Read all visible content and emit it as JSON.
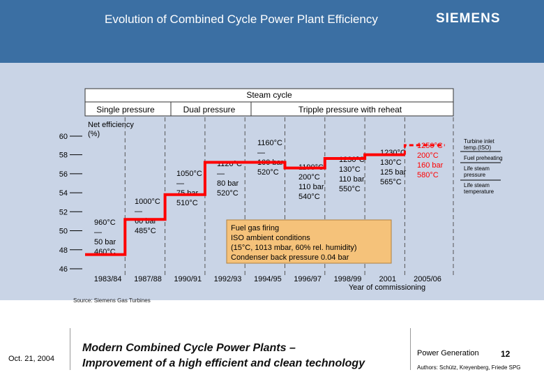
{
  "header": {
    "title": "Evolution of Combined Cycle Power Plant Efficiency",
    "logo": "SIEMENS"
  },
  "colors": {
    "header_bg": "#3b6fa3",
    "panel_bg": "#c9d4e6",
    "step_line": "#ff0000",
    "note_bg": "#f5c27a"
  },
  "chart_data": {
    "type": "line",
    "title": "Steam cycle",
    "ylabel": "Net efficiency (%)",
    "xlabel": "Year of commissioning",
    "ylim": [
      46,
      60
    ],
    "yticks": [
      "46",
      "48",
      "50",
      "52",
      "54",
      "56",
      "58",
      "60"
    ],
    "categories": [
      "1983/84",
      "1987/88",
      "1990/91",
      "1992/93",
      "1994/95",
      "1996/97",
      "1998/99",
      "2001",
      "2005/06"
    ],
    "series": [
      {
        "name": "Net efficiency",
        "step": true,
        "values": [
          47.5,
          51.2,
          53.8,
          57.2,
          57.2,
          56.6,
          57.6,
          58.0,
          59.0
        ]
      }
    ],
    "pressure_groups": [
      {
        "label": "Single pressure"
      },
      {
        "label": "Dual pressure"
      },
      {
        "label": "Tripple pressure with reheat"
      }
    ],
    "annotations": [
      {
        "lines": [
          "960°C",
          "—",
          "50 bar",
          "460°C"
        ]
      },
      {
        "lines": [
          "1000°C",
          "—",
          "60 bar",
          "485°C"
        ]
      },
      {
        "lines": [
          "1050°C",
          "—",
          "75 bar",
          "510°C"
        ]
      },
      {
        "lines": [
          "1120°C",
          "—",
          "80 bar",
          "520°C"
        ]
      },
      {
        "lines": [
          "1160°C",
          "—",
          "100 bar",
          "520°C"
        ]
      },
      {
        "lines": [
          "1190°C",
          "200°C",
          "110 bar",
          "540°C"
        ]
      },
      {
        "lines": [
          "1230°C",
          "130°C",
          "110 bar",
          "550°C"
        ]
      },
      {
        "lines": [
          "1230°C",
          "130°C",
          "125 bar",
          "565°C"
        ]
      },
      {
        "lines": [
          "1250°C",
          "200°C",
          "160 bar",
          "580°C"
        ]
      }
    ],
    "legend": [
      "Turbine inlet temp.(ISO)",
      "Fuel preheating",
      "Life steam pressure",
      "Life steam temperature"
    ],
    "note": [
      "Fuel gas firing",
      "ISO ambient conditions",
      "(15°C, 1013 mbar, 60% rel. humidity)",
      "Condenser back pressure 0.04 bar"
    ]
  },
  "source": "Source: Siemens Gas Turbines",
  "footer": {
    "date": "Oct. 21, 2004",
    "line1": "Modern Combined Cycle Power Plants –",
    "line2": "Improvement of a high efficient and clean technology",
    "division": "Power Generation",
    "page": "12",
    "authors": "Authors: Schütz, Kreyenberg, Friede SPG"
  }
}
